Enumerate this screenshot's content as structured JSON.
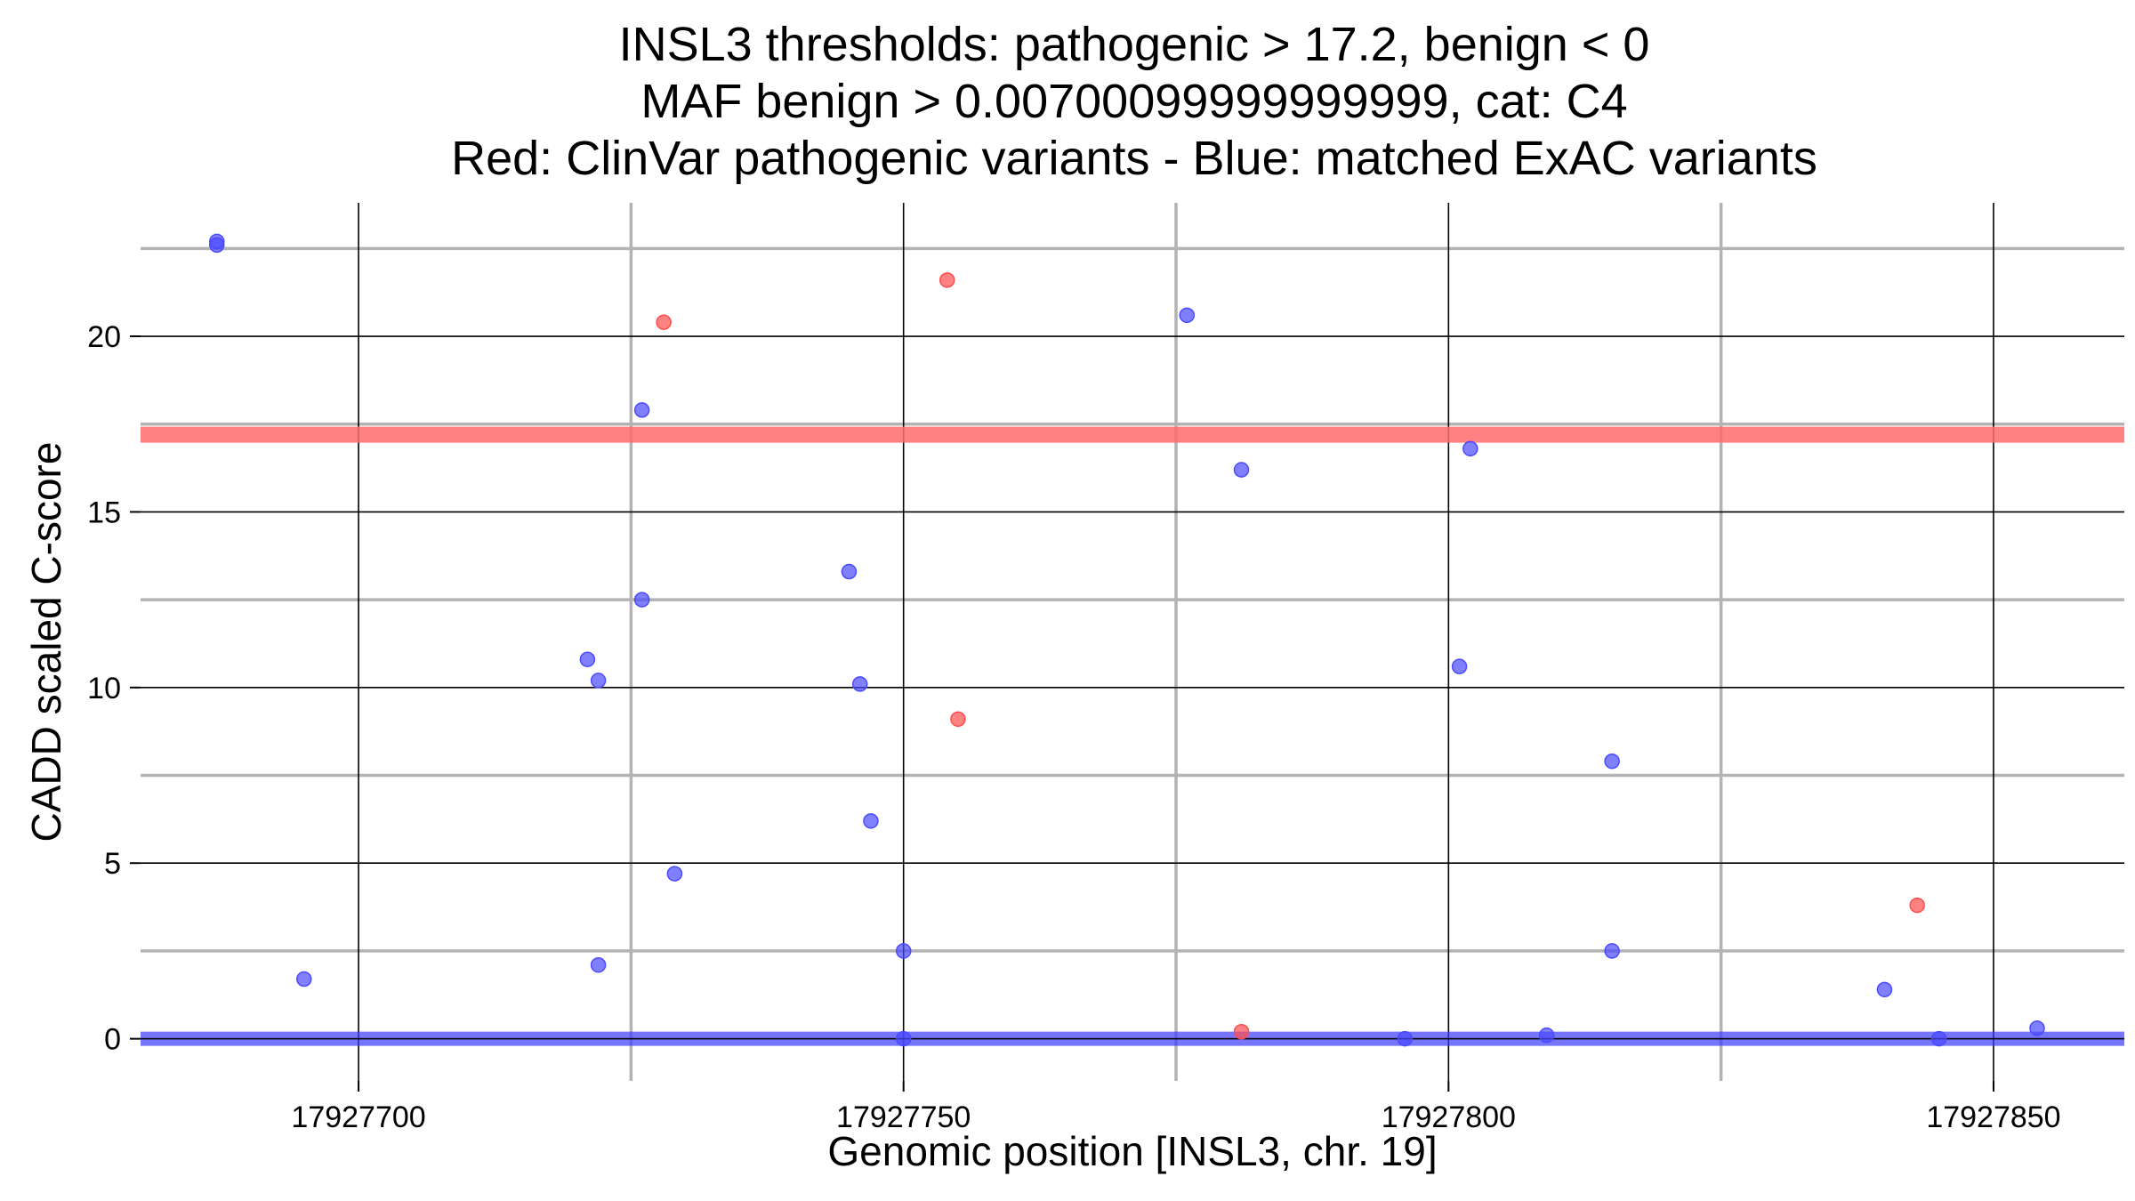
{
  "chart_data": {
    "type": "scatter",
    "title_lines": [
      "INSL3 thresholds: pathogenic > 17.2, benign < 0",
      "MAF benign > 0.00700099999999999, cat: C4",
      "Red: ClinVar pathogenic variants - Blue: matched ExAC variants"
    ],
    "xlabel": "Genomic position [INSL3, chr. 19]",
    "ylabel": "CADD scaled C-score",
    "xlim": [
      17927680,
      17927862
    ],
    "ylim": [
      -1.2,
      23.8
    ],
    "x_ticks": [
      17927700,
      17927750,
      17927800,
      17927850
    ],
    "x_tick_labels": [
      "17927700",
      "17927750",
      "17927800",
      "17927850"
    ],
    "x_minor_ticks": [
      17927725,
      17927775,
      17927825
    ],
    "y_ticks": [
      0,
      5,
      10,
      15,
      20
    ],
    "y_tick_labels": [
      "0",
      "5",
      "10",
      "15",
      "20"
    ],
    "y_minor_ticks": [
      2.5,
      7.5,
      12.5,
      17.5,
      22.5
    ],
    "thresholds": {
      "pathogenic": {
        "value": 17.2,
        "color": "#ff6b6b"
      },
      "benign": {
        "value": 0,
        "color": "#3b3bff"
      }
    },
    "colors": {
      "clinvar": "#ff4d4d",
      "exac": "#4a4aff"
    },
    "series": [
      {
        "name": "ClinVar pathogenic variants",
        "color_key": "clinvar",
        "points": [
          {
            "x": 17927728,
            "y": 20.4
          },
          {
            "x": 17927754,
            "y": 21.6
          },
          {
            "x": 17927755,
            "y": 9.1
          },
          {
            "x": 17927781,
            "y": 0.2
          },
          {
            "x": 17927843,
            "y": 3.8
          }
        ]
      },
      {
        "name": "matched ExAC variants",
        "color_key": "exac",
        "points": [
          {
            "x": 17927687,
            "y": 22.7
          },
          {
            "x": 17927687,
            "y": 22.6
          },
          {
            "x": 17927695,
            "y": 1.7
          },
          {
            "x": 17927721,
            "y": 10.8
          },
          {
            "x": 17927722,
            "y": 10.2
          },
          {
            "x": 17927722,
            "y": 2.1
          },
          {
            "x": 17927726,
            "y": 17.9
          },
          {
            "x": 17927726,
            "y": 12.5
          },
          {
            "x": 17927729,
            "y": 4.7
          },
          {
            "x": 17927745,
            "y": 13.3
          },
          {
            "x": 17927746,
            "y": 10.1
          },
          {
            "x": 17927747,
            "y": 6.2
          },
          {
            "x": 17927750,
            "y": 2.5
          },
          {
            "x": 17927750,
            "y": 0.0
          },
          {
            "x": 17927776,
            "y": 20.6
          },
          {
            "x": 17927781,
            "y": 16.2
          },
          {
            "x": 17927796,
            "y": 0.0
          },
          {
            "x": 17927801,
            "y": 10.6
          },
          {
            "x": 17927802,
            "y": 16.8
          },
          {
            "x": 17927809,
            "y": 0.1
          },
          {
            "x": 17927815,
            "y": 7.9
          },
          {
            "x": 17927815,
            "y": 2.5
          },
          {
            "x": 17927840,
            "y": 1.4
          },
          {
            "x": 17927845,
            "y": 0.0
          },
          {
            "x": 17927854,
            "y": 0.3
          }
        ]
      }
    ]
  }
}
